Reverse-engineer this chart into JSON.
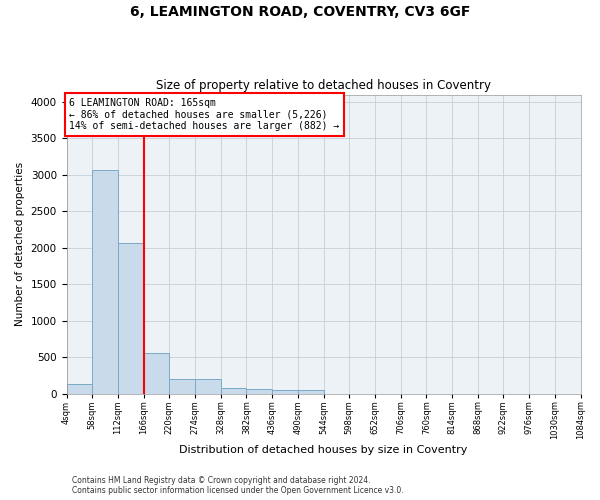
{
  "title": "6, LEAMINGTON ROAD, COVENTRY, CV3 6GF",
  "subtitle": "Size of property relative to detached houses in Coventry",
  "xlabel": "Distribution of detached houses by size in Coventry",
  "ylabel": "Number of detached properties",
  "bar_color": "#c9daea",
  "bar_edgecolor": "#7aaac8",
  "vline_x": 166,
  "vline_color": "red",
  "annotation_title": "6 LEAMINGTON ROAD: 165sqm",
  "annotation_line1": "← 86% of detached houses are smaller (5,226)",
  "annotation_line2": "14% of semi-detached houses are larger (882) →",
  "annotation_box_color": "red",
  "bin_edges": [
    4,
    58,
    112,
    166,
    220,
    274,
    328,
    382,
    436,
    490,
    544,
    598,
    652,
    706,
    760,
    814,
    868,
    922,
    976,
    1030,
    1084
  ],
  "bar_heights": [
    130,
    3060,
    2060,
    560,
    200,
    195,
    75,
    65,
    50,
    50,
    0,
    0,
    0,
    0,
    0,
    0,
    0,
    0,
    0,
    0
  ],
  "ylim": [
    0,
    4100
  ],
  "yticks": [
    0,
    500,
    1000,
    1500,
    2000,
    2500,
    3000,
    3500,
    4000
  ],
  "footer_line1": "Contains HM Land Registry data © Crown copyright and database right 2024.",
  "footer_line2": "Contains public sector information licensed under the Open Government Licence v3.0.",
  "plot_bg_color": "#edf2f7",
  "fig_bg_color": "#ffffff"
}
